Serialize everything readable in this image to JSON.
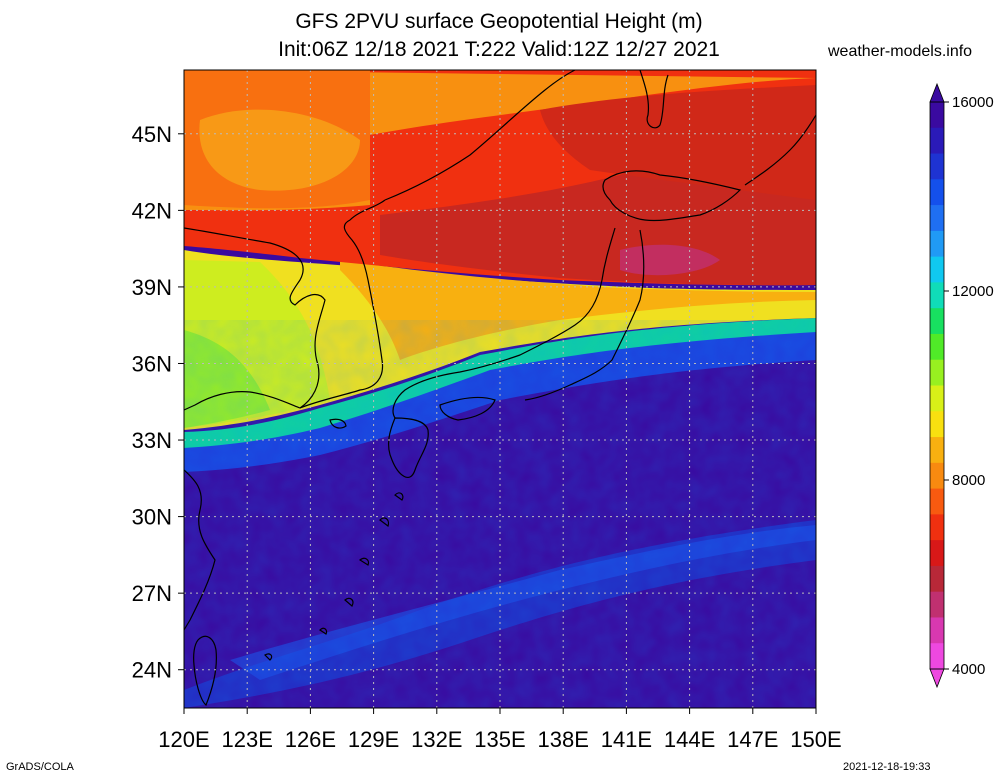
{
  "header": {
    "title_line1": "GFS 2PVU surface Geopotential Height (m)",
    "title_line2": "Init:06Z 12/18 2021 T:222 Valid:12Z 12/27 2021",
    "source": "weather-models.info"
  },
  "footer": {
    "software": "GrADS/COLA",
    "timestamp": "2021-12-18-19:33"
  },
  "map": {
    "lon_range": [
      120,
      150
    ],
    "lat_range": [
      22.5,
      47.5
    ],
    "lon_ticks": [
      "120E",
      "123E",
      "126E",
      "129E",
      "132E",
      "135E",
      "138E",
      "141E",
      "144E",
      "147E",
      "150E"
    ],
    "lat_ticks": [
      "45N",
      "42N",
      "39N",
      "36N",
      "33N",
      "30N",
      "27N",
      "24N"
    ],
    "gridlines": "dotted"
  },
  "colorbar": {
    "labels": [
      "16000",
      "12000",
      "8000",
      "4000"
    ],
    "colors": [
      "#3a0aa0",
      "#2a1ab8",
      "#1e33d2",
      "#1450ec",
      "#1f6ff2",
      "#209af5",
      "#10c8f0",
      "#10dcb8",
      "#18e060",
      "#50ea28",
      "#98f020",
      "#d8f018",
      "#f8e010",
      "#f8b010",
      "#f88a10",
      "#f85a10",
      "#f03010",
      "#d81818",
      "#b82838",
      "#c03070",
      "#d838b0",
      "#ee48e0"
    ]
  }
}
